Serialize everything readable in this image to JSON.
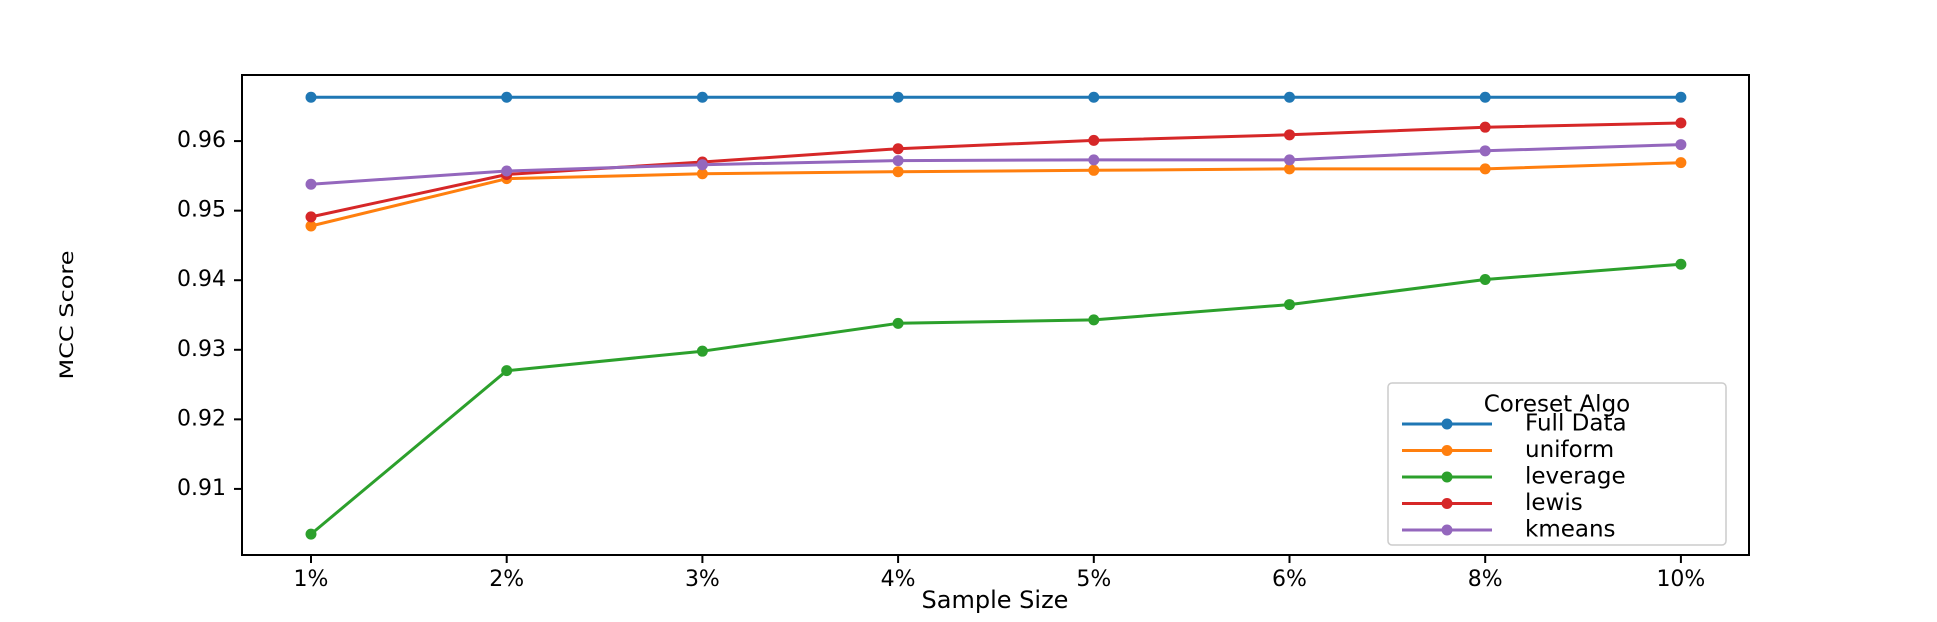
{
  "chart_data": {
    "type": "line",
    "title": "",
    "xlabel": "Sample Size",
    "ylabel": "MCC Score",
    "categories": [
      "1%",
      "2%",
      "3%",
      "4%",
      "5%",
      "6%",
      "8%",
      "10%"
    ],
    "ylim": [
      0.9005,
      0.9695
    ],
    "yticks": [
      0.91,
      0.92,
      0.93,
      0.94,
      0.95,
      0.96
    ],
    "ytick_labels": [
      "0.91",
      "0.92",
      "0.93",
      "0.94",
      "0.95",
      "0.96"
    ],
    "grid": false,
    "legend": {
      "title": "Coreset Algo",
      "position": "lower-right"
    },
    "series": [
      {
        "name": "Full Data",
        "color": "#1f77b4",
        "values": [
          0.9663,
          0.9663,
          0.9663,
          0.9663,
          0.9663,
          0.9663,
          0.9663,
          0.9663
        ]
      },
      {
        "name": "uniform",
        "color": "#ff7f0e",
        "values": [
          0.9478,
          0.9546,
          0.9553,
          0.9556,
          0.9558,
          0.956,
          0.956,
          0.9569
        ]
      },
      {
        "name": "leverage",
        "color": "#2ca02c",
        "values": [
          0.9035,
          0.927,
          0.9298,
          0.9338,
          0.9343,
          0.9365,
          0.9401,
          0.9423
        ]
      },
      {
        "name": "lewis",
        "color": "#d62728",
        "values": [
          0.9491,
          0.9552,
          0.957,
          0.9589,
          0.9601,
          0.9609,
          0.962,
          0.9626
        ]
      },
      {
        "name": "kmeans",
        "color": "#9467bd",
        "values": [
          0.9538,
          0.9557,
          0.9566,
          0.9572,
          0.9573,
          0.9573,
          0.9586,
          0.9595
        ]
      }
    ]
  }
}
